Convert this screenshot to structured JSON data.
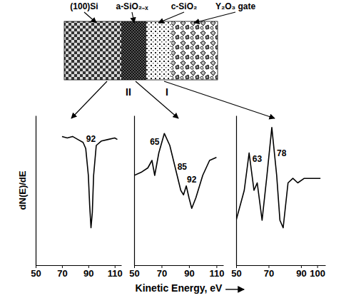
{
  "chart_data": [
    {
      "type": "line",
      "ylabel": "dN(E)/dE",
      "x": [
        70,
        74,
        78,
        82,
        86,
        88,
        90,
        91,
        92,
        93,
        94,
        96,
        100,
        105,
        110,
        112
      ],
      "series": [
        {
          "color": "#000000",
          "values": [
            8.6,
            8.5,
            8.6,
            8.4,
            8.2,
            7.8,
            6,
            4,
            2.5,
            3.5,
            6,
            8,
            8.3,
            8.4,
            8.5,
            8.4
          ]
        }
      ],
      "xlim": [
        50,
        115
      ],
      "xticks": [
        50,
        70,
        90,
        110
      ],
      "ylim": [
        0,
        10
      ],
      "yticks": [],
      "grid": false,
      "tick_labels": "x",
      "annotations": [
        {
          "text": "92",
          "x": 92
        }
      ]
    },
    {
      "type": "line",
      "xlabel": "Kinetic Energy, eV",
      "x": [
        50,
        55,
        60,
        63,
        65,
        68,
        72,
        76,
        80,
        84,
        86,
        88,
        90,
        92,
        95,
        100,
        105,
        110
      ],
      "series": [
        {
          "color": "#000000",
          "values": [
            6,
            6.2,
            6.5,
            7,
            6,
            7.5,
            8.8,
            8,
            6.5,
            5,
            4.7,
            5.3,
            4.5,
            3.8,
            4.5,
            6,
            7,
            7.2
          ]
        }
      ],
      "xlim": [
        50,
        115
      ],
      "xticks": [
        50,
        70,
        90,
        110
      ],
      "ylim": [
        0,
        10
      ],
      "yticks": [],
      "grid": false,
      "tick_labels": "x",
      "annotations": [
        {
          "text": "65",
          "x": 65
        },
        {
          "text": "85",
          "x": 85
        },
        {
          "text": "92",
          "x": 92
        }
      ]
    },
    {
      "type": "line",
      "x": [
        50,
        55,
        58,
        61,
        63,
        66,
        69,
        72,
        75,
        77,
        79,
        82,
        85,
        88,
        92,
        97,
        102
      ],
      "series": [
        {
          "color": "#000000",
          "values": [
            3,
            5,
            7.5,
            5,
            5.5,
            3,
            6,
            9.2,
            6,
            3,
            2.5,
            5.5,
            5.8,
            5.5,
            5.8,
            5.8,
            5.8
          ]
        }
      ],
      "xlim": [
        50,
        105
      ],
      "xticks": [
        50,
        70,
        90,
        100
      ],
      "ylim": [
        0,
        10
      ],
      "yticks": [],
      "grid": false,
      "tick_labels": "x",
      "annotations": [
        {
          "text": "63",
          "x": 63
        },
        {
          "text": "78",
          "x": 78
        }
      ]
    }
  ],
  "diagram": {
    "layers": [
      "(100)Si",
      "a-SiO₂₋ₓ",
      "c-SiO₂",
      "Y₂O₃ gate"
    ],
    "regions": [
      "II",
      "I"
    ]
  }
}
